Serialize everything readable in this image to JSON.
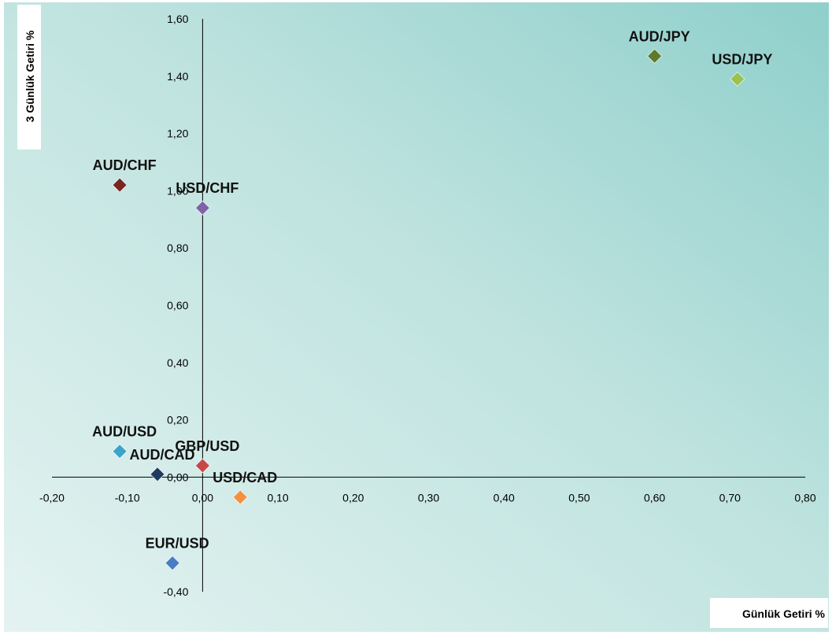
{
  "chart_data": {
    "type": "scatter",
    "title": "",
    "xlabel": "Günlük Getiri %",
    "ylabel": "3 Günlük Getiri %",
    "xlim": [
      -0.2,
      0.8
    ],
    "ylim": [
      -0.4,
      1.6
    ],
    "xticks": [
      -0.2,
      -0.1,
      0.0,
      0.1,
      0.2,
      0.3,
      0.4,
      0.5,
      0.6,
      0.7,
      0.8
    ],
    "yticks": [
      -0.4,
      -0.2,
      0.0,
      0.2,
      0.4,
      0.6,
      0.8,
      1.0,
      1.2,
      1.4,
      1.6
    ],
    "xtick_labels": [
      "-0,20",
      "-0,10",
      "0,00",
      "0,10",
      "0,20",
      "0,30",
      "0,40",
      "0,50",
      "0,60",
      "0,70",
      "0,80"
    ],
    "ytick_labels": [
      "-0,40",
      "",
      "0,00",
      "0,20",
      "0,40",
      "0,60",
      "0,80",
      "1,00",
      "1,20",
      "1,40",
      "1,60"
    ],
    "grid": false,
    "points": [
      {
        "label": "AUD/JPY",
        "x": 0.6,
        "y": 1.47,
        "color": "#5e7a2c"
      },
      {
        "label": "USD/JPY",
        "x": 0.71,
        "y": 1.39,
        "color": "#9bc152"
      },
      {
        "label": "AUD/CHF",
        "x": -0.11,
        "y": 1.02,
        "color": "#7a2424"
      },
      {
        "label": "USD/CHF",
        "x": 0.0,
        "y": 0.94,
        "color": "#7f63a6"
      },
      {
        "label": "AUD/USD",
        "x": -0.11,
        "y": 0.09,
        "color": "#3ca4c8"
      },
      {
        "label": "AUD/CAD",
        "x": -0.06,
        "y": 0.01,
        "color": "#1f3b63"
      },
      {
        "label": "GBP/USD",
        "x": 0.0,
        "y": 0.04,
        "color": "#c84848"
      },
      {
        "label": "USD/CAD",
        "x": 0.05,
        "y": -0.07,
        "color": "#f39140"
      },
      {
        "label": "EUR/USD",
        "x": -0.04,
        "y": -0.3,
        "color": "#4a7ec4"
      }
    ]
  }
}
